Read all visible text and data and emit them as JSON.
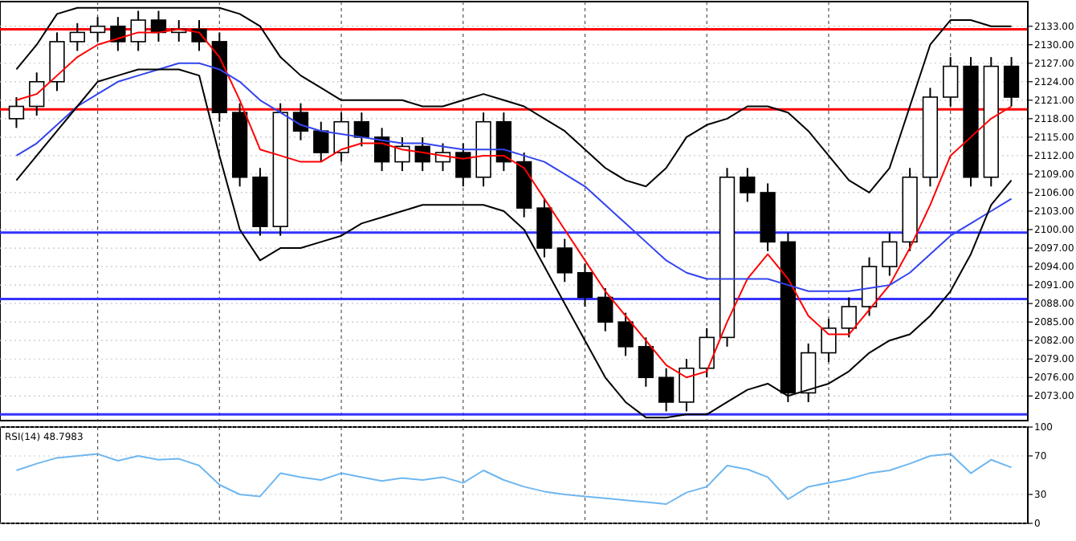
{
  "chart_data": [
    {
      "type": "candlestick",
      "categories": [
        null,
        null,
        null,
        null,
        null,
        null,
        null,
        null,
        null,
        null,
        null,
        null,
        null,
        null,
        null,
        null,
        null,
        null,
        null,
        null,
        null,
        null,
        null,
        null,
        null,
        null,
        null,
        null,
        null,
        null,
        null,
        null,
        null,
        null,
        null,
        null,
        null,
        null,
        null,
        null,
        null,
        null,
        null,
        null,
        null,
        null,
        null,
        null,
        null,
        null
      ],
      "ohlc": [
        [
          2118,
          2121.5,
          2116.5,
          2120
        ],
        [
          2120,
          2125.5,
          2118.5,
          2124
        ],
        [
          2124,
          2132,
          2122.5,
          2130.5
        ],
        [
          2130.5,
          2133.5,
          2129,
          2132
        ],
        [
          2132,
          2134.5,
          2130.5,
          2133
        ],
        [
          2133,
          2134.5,
          2129,
          2130.5
        ],
        [
          2130.5,
          2135.5,
          2129,
          2134
        ],
        [
          2134,
          2135.5,
          2130.5,
          2132
        ],
        [
          2132,
          2134,
          2130.5,
          2132.5
        ],
        [
          2132.5,
          2134,
          2129,
          2130.5
        ],
        [
          2130.5,
          2132,
          2117.5,
          2119
        ],
        [
          2119,
          2120.5,
          2107,
          2108.5
        ],
        [
          2108.5,
          2110,
          2099,
          2100.5
        ],
        [
          2100.5,
          2120.5,
          2099,
          2119
        ],
        [
          2119,
          2120.5,
          2114.5,
          2116
        ],
        [
          2116,
          2117.5,
          2111,
          2112.5
        ],
        [
          2112.5,
          2119,
          2111,
          2117.5
        ],
        [
          2117.5,
          2119,
          2113.5,
          2115
        ],
        [
          2115,
          2116.5,
          2109.5,
          2111
        ],
        [
          2111,
          2115,
          2109.5,
          2113.5
        ],
        [
          2113.5,
          2115,
          2109.5,
          2111
        ],
        [
          2111,
          2114,
          2109.5,
          2112.5
        ],
        [
          2112.5,
          2114,
          2107,
          2108.5
        ],
        [
          2108.5,
          2119,
          2107,
          2117.5
        ],
        [
          2117.5,
          2119,
          2109.5,
          2111
        ],
        [
          2111,
          2112.5,
          2102,
          2103.5
        ],
        [
          2103.5,
          2105,
          2095.5,
          2097
        ],
        [
          2097,
          2098.5,
          2091.5,
          2093
        ],
        [
          2093,
          2094.5,
          2087.5,
          2089
        ],
        [
          2089,
          2090.5,
          2083.5,
          2085
        ],
        [
          2085,
          2086.5,
          2079.5,
          2081
        ],
        [
          2081,
          2082.5,
          2074.5,
          2076
        ],
        [
          2076,
          2077.5,
          2070.5,
          2072
        ],
        [
          2072,
          2079,
          2070.5,
          2077.5
        ],
        [
          2077.5,
          2084,
          2076,
          2082.5
        ],
        [
          2082.5,
          2110,
          2081,
          2108.5
        ],
        [
          2108.5,
          2110,
          2104.5,
          2106
        ],
        [
          2106,
          2107.5,
          2096.5,
          2098
        ],
        [
          2098,
          2099.5,
          2072,
          2073.5
        ],
        [
          2073.5,
          2081.5,
          2072,
          2080
        ],
        [
          2080,
          2085.5,
          2078.5,
          2084
        ],
        [
          2084,
          2089,
          2082.5,
          2087.5
        ],
        [
          2087.5,
          2095.5,
          2086,
          2094
        ],
        [
          2094,
          2099.5,
          2092.5,
          2098
        ],
        [
          2098,
          2110,
          2096.5,
          2108.5
        ],
        [
          2108.5,
          2123,
          2107,
          2121.5
        ],
        [
          2121.5,
          2128,
          2120,
          2126.5
        ],
        [
          2126.5,
          2128,
          2107,
          2108.5
        ],
        [
          2108.5,
          2128,
          2107,
          2126.5
        ],
        [
          2126.5,
          2128,
          2120,
          2121.5
        ]
      ],
      "series": [
        {
          "type": "line",
          "color": "#ff0000",
          "values": [
            2121,
            2122,
            2125,
            2128,
            2130,
            2131,
            2132,
            2132,
            2132.5,
            2132,
            2128,
            2121,
            2113,
            2112,
            2111,
            2111,
            2113,
            2114,
            2114,
            2113,
            2112.5,
            2112,
            2111.5,
            2112,
            2112,
            2110,
            2105,
            2100,
            2095,
            2090,
            2086,
            2082,
            2078,
            2076,
            2077,
            2085,
            2092,
            2096,
            2092,
            2086,
            2083,
            2083,
            2087,
            2091,
            2097,
            2104,
            2112,
            2115,
            2118,
            2120
          ]
        },
        {
          "type": "line",
          "color": "#3344ee",
          "values": [
            2112,
            2114,
            2117,
            2120,
            2122,
            2124,
            2125,
            2126,
            2127,
            2127,
            2126,
            2124,
            2121,
            2119,
            2117,
            2116,
            2115.5,
            2115,
            2114.5,
            2114,
            2114,
            2113.5,
            2113,
            2113,
            2113,
            2112,
            2111,
            2109,
            2107,
            2104,
            2101,
            2098,
            2095,
            2093,
            2092,
            2092,
            2092,
            2092,
            2091,
            2090,
            2090,
            2090,
            2090.5,
            2091,
            2093,
            2096,
            2099,
            2101,
            2103,
            2105
          ]
        },
        {
          "type": "line",
          "color": "#000000",
          "values": [
            2126,
            2130,
            2135,
            2136,
            2136,
            2136,
            2136,
            2136,
            2136,
            2136,
            2136,
            2135,
            2133,
            2128,
            2125,
            2123,
            2121,
            2121,
            2121,
            2121,
            2120,
            2120,
            2121,
            2122,
            2121,
            2120,
            2118,
            2116,
            2113,
            2110,
            2108,
            2107,
            2110,
            2115,
            2117,
            2118,
            2120,
            2120,
            2119,
            2116,
            2112,
            2108,
            2106,
            2110,
            2120,
            2130,
            2134,
            2134,
            2133,
            2133
          ]
        },
        {
          "type": "line",
          "color": "#000000",
          "values": [
            2108,
            2112,
            2116,
            2120,
            2124,
            2125,
            2126,
            2126,
            2126,
            2125,
            2112,
            2100,
            2095,
            2097,
            2097,
            2098,
            2099,
            2101,
            2102,
            2103,
            2104,
            2104,
            2104,
            2104,
            2103,
            2100,
            2094,
            2088,
            2082,
            2076,
            2072,
            2069.5,
            2069.5,
            2070,
            2070,
            2072,
            2074,
            2075,
            2073,
            2074,
            2075,
            2077,
            2080,
            2082,
            2083,
            2086,
            2090,
            2096,
            2104,
            2108
          ]
        }
      ],
      "ylim": [
        2069,
        2137
      ],
      "yticks": [
        {
          "value": 2073,
          "label": "2073.00"
        },
        {
          "value": 2076,
          "label": "2076.00"
        },
        {
          "value": 2079,
          "label": "2079.00"
        },
        {
          "value": 2082,
          "label": "2082.00"
        },
        {
          "value": 2085,
          "label": "2085.00"
        },
        {
          "value": 2088,
          "label": "2088.00"
        },
        {
          "value": 2091,
          "label": "2091.00"
        },
        {
          "value": 2094,
          "label": "2094.00"
        },
        {
          "value": 2097,
          "label": "2097.00"
        },
        {
          "value": 2100,
          "label": "2100.00"
        },
        {
          "value": 2103,
          "label": "2103.00"
        },
        {
          "value": 2106,
          "label": "2106.00"
        },
        {
          "value": 2109,
          "label": "2109.00"
        },
        {
          "value": 2112,
          "label": "2112.00"
        },
        {
          "value": 2115,
          "label": "2115.00"
        },
        {
          "value": 2118,
          "label": "2118.00"
        },
        {
          "value": 2121,
          "label": "2121.00"
        },
        {
          "value": 2124,
          "label": "2124.00"
        },
        {
          "value": 2127,
          "label": "2127.00"
        },
        {
          "value": 2130,
          "label": "2130.00"
        },
        {
          "value": 2133,
          "label": "2133.00"
        }
      ],
      "grid": true,
      "ref_lines": [
        {
          "axis": "y",
          "value": 2132.5,
          "color": "#ff0000"
        },
        {
          "axis": "y",
          "value": 2119.5,
          "color": "#ff0000"
        },
        {
          "axis": "y",
          "value": 2099.5,
          "color": "#3333ff"
        },
        {
          "axis": "y",
          "value": 2088.75,
          "color": "#3333ff"
        },
        {
          "axis": "y",
          "value": 2070,
          "color": "#3333ff"
        }
      ]
    },
    {
      "type": "line",
      "title": "RSI(14) 48.7983",
      "categories": [
        null,
        null,
        null,
        null,
        null,
        null,
        null,
        null,
        null,
        null,
        null,
        null,
        null,
        null,
        null,
        null,
        null,
        null,
        null,
        null,
        null,
        null,
        null,
        null,
        null,
        null,
        null,
        null,
        null,
        null,
        null,
        null,
        null,
        null,
        null,
        null,
        null,
        null,
        null,
        null,
        null,
        null,
        null,
        null,
        null,
        null,
        null,
        null,
        null,
        null
      ],
      "values": [
        55,
        62,
        68,
        70,
        72,
        65,
        70,
        66,
        67,
        60,
        40,
        30,
        28,
        52,
        48,
        45,
        52,
        48,
        44,
        47,
        45,
        48,
        42,
        55,
        45,
        38,
        33,
        30,
        28,
        26,
        24,
        22,
        20,
        32,
        38,
        60,
        56,
        48,
        25,
        38,
        42,
        46,
        52,
        55,
        62,
        70,
        72,
        52,
        66,
        58
      ],
      "color": "#6fb7f0",
      "ylim": [
        0,
        100
      ],
      "yticks": [
        0,
        30,
        70,
        100
      ],
      "grid": true
    }
  ]
}
